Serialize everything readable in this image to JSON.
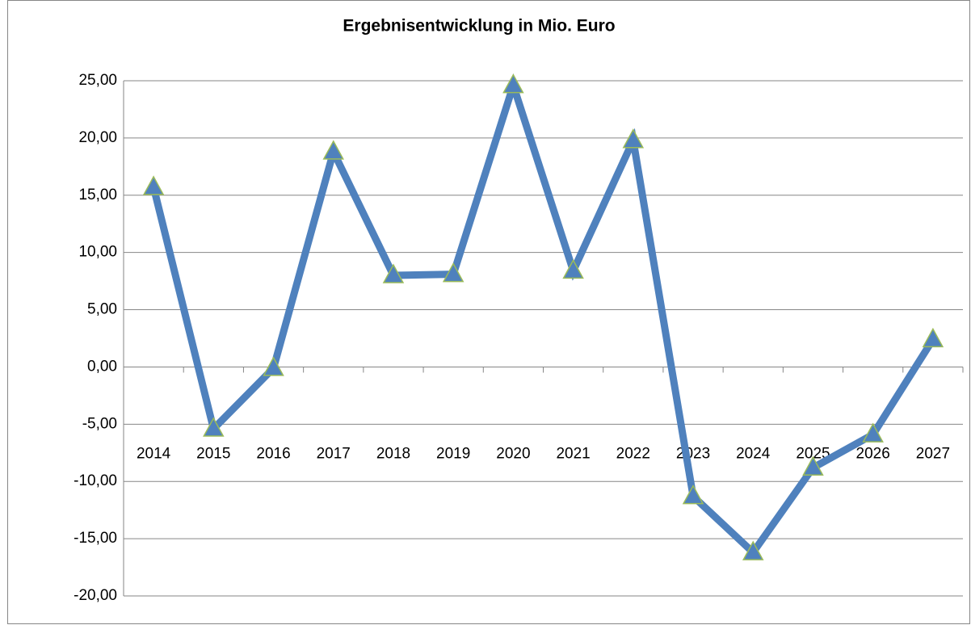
{
  "chart_data": {
    "type": "line",
    "title": "Ergebnisentwicklung in Mio. Euro",
    "categories": [
      "2014",
      "2015",
      "2016",
      "2017",
      "2018",
      "2019",
      "2020",
      "2021",
      "2022",
      "2023",
      "2024",
      "2025",
      "2026",
      "2027"
    ],
    "series": [
      {
        "color": "#4f81bd",
        "values": [
          15.7,
          -5.4,
          -0.1,
          18.8,
          8.0,
          8.1,
          24.6,
          8.4,
          19.8,
          -11.3,
          -16.2,
          -8.8,
          -5.9,
          2.4
        ]
      }
    ],
    "ylim": [
      -20,
      25
    ],
    "yticks": [
      {
        "value": -20,
        "label": "-20,00"
      },
      {
        "value": -15,
        "label": "-15,00"
      },
      {
        "value": -10,
        "label": "-10,00"
      },
      {
        "value": -5,
        "label": "-5,00"
      },
      {
        "value": 0,
        "label": "0,00"
      },
      {
        "value": 5,
        "label": "5,00"
      },
      {
        "value": 10,
        "label": "10,00"
      },
      {
        "value": 15,
        "label": "15,00"
      },
      {
        "value": 20,
        "label": "20,00"
      },
      {
        "value": 25,
        "label": "25,00"
      }
    ],
    "grid": true,
    "marker_edge_color": "#9bbb59"
  }
}
